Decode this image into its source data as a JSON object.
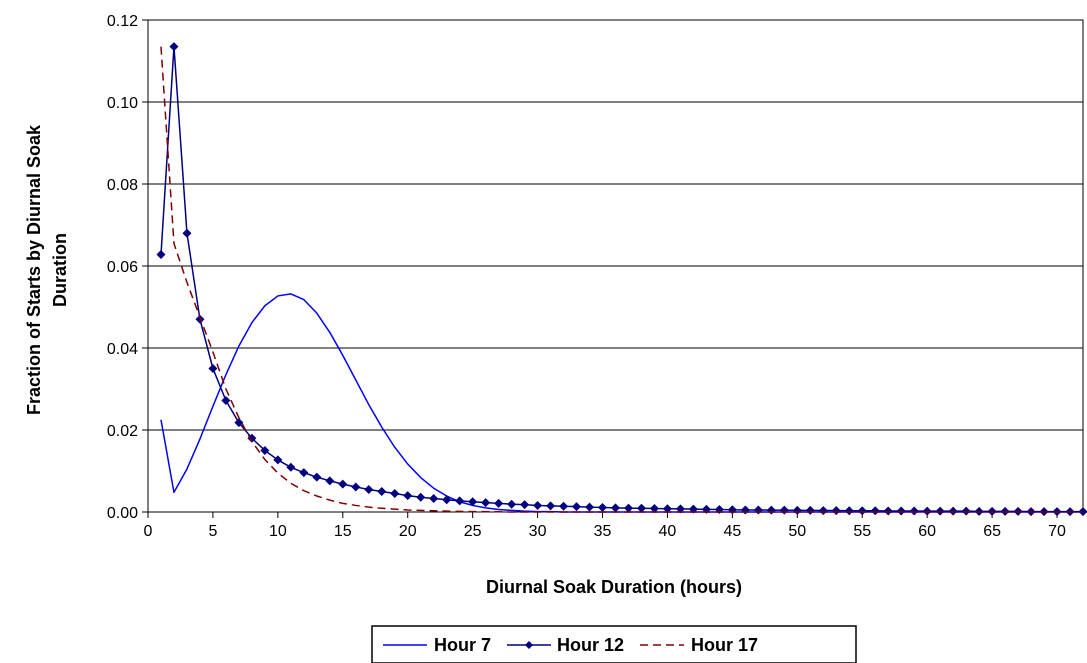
{
  "chart_data": {
    "type": "line",
    "title": "",
    "xlabel": "Diurnal Soak Duration (hours)",
    "ylabel_lines": [
      "Fraction of Starts by Diurnal Soak",
      "Duration"
    ],
    "xlim": [
      0,
      72
    ],
    "ylim": [
      0,
      0.12
    ],
    "x_ticks": [
      0,
      5,
      10,
      15,
      20,
      25,
      30,
      35,
      40,
      45,
      50,
      55,
      60,
      65,
      70
    ],
    "x_tick_labels": [
      "0",
      "5",
      "10",
      "15",
      "20",
      "25",
      "30",
      "35",
      "40",
      "45",
      "50",
      "55",
      "60",
      "65",
      "70"
    ],
    "y_ticks": [
      0,
      0.02,
      0.04,
      0.06,
      0.08,
      0.1,
      0.12
    ],
    "y_tick_labels": [
      "0.00",
      "0.02",
      "0.04",
      "0.06",
      "0.08",
      "0.10",
      "0.12"
    ],
    "grid": "horizontal",
    "legend_position": "bottom",
    "x": [
      1,
      2,
      3,
      4,
      5,
      6,
      7,
      8,
      9,
      10,
      11,
      12,
      13,
      14,
      15,
      16,
      17,
      18,
      19,
      20,
      21,
      22,
      23,
      24,
      25,
      26,
      27,
      28,
      29,
      30,
      31,
      32,
      33,
      34,
      35,
      36,
      37,
      38,
      39,
      40,
      41,
      42,
      43,
      44,
      45,
      46,
      47,
      48,
      49,
      50,
      51,
      52,
      53,
      54,
      55,
      56,
      57,
      58,
      59,
      60,
      61,
      62,
      63,
      64,
      65,
      66,
      67,
      68,
      69,
      70,
      71,
      72
    ],
    "series": [
      {
        "name": "Hour 7",
        "color": "#0000ff",
        "style": "solid",
        "marker": "none",
        "values": [
          0.0225,
          0.0048,
          0.0105,
          0.0178,
          0.0258,
          0.0335,
          0.0405,
          0.0462,
          0.0503,
          0.0527,
          0.0532,
          0.0518,
          0.0485,
          0.0438,
          0.0382,
          0.0322,
          0.0262,
          0.0207,
          0.0158,
          0.0117,
          0.0084,
          0.0058,
          0.0039,
          0.0025,
          0.0016,
          0.001,
          0.0006,
          0.0004,
          0.0002,
          0.0001,
          0.0001,
          0,
          0,
          0,
          0,
          0,
          0,
          0,
          0,
          0,
          0,
          0,
          0,
          0,
          0,
          0,
          0,
          0,
          0,
          0,
          0,
          0,
          0,
          0,
          0,
          0,
          0,
          0,
          0,
          0,
          0,
          0,
          0,
          0,
          0,
          0,
          0,
          0,
          0,
          0,
          0,
          0
        ]
      },
      {
        "name": "Hour 12",
        "color": "#000080",
        "style": "solid",
        "marker": "diamond",
        "values": [
          0.0628,
          0.1135,
          0.068,
          0.047,
          0.035,
          0.0272,
          0.0218,
          0.018,
          0.015,
          0.0127,
          0.0109,
          0.0096,
          0.0085,
          0.0076,
          0.0068,
          0.0061,
          0.0055,
          0.005,
          0.0045,
          0.004,
          0.0036,
          0.0033,
          0.003,
          0.0027,
          0.0025,
          0.0023,
          0.0021,
          0.0019,
          0.0018,
          0.0016,
          0.0015,
          0.0014,
          0.0013,
          0.0012,
          0.0011,
          0.001,
          0.00095,
          0.0009,
          0.00085,
          0.0008,
          0.00075,
          0.0007,
          0.00065,
          0.0006,
          0.00055,
          0.0005,
          0.0005,
          0.00045,
          0.00045,
          0.0004,
          0.0004,
          0.00035,
          0.00035,
          0.0003,
          0.0003,
          0.0003,
          0.00025,
          0.00025,
          0.00025,
          0.0002,
          0.0002,
          0.0002,
          0.0002,
          0.00015,
          0.00015,
          0.00015,
          0.00015,
          0.0001,
          0.0001,
          0.0001,
          0.0001,
          0.0001
        ]
      },
      {
        "name": "Hour 17",
        "color": "#800000",
        "style": "dashed",
        "marker": "none",
        "values": [
          0.1135,
          0.0655,
          0.056,
          0.0475,
          0.039,
          0.03,
          0.023,
          0.0172,
          0.0128,
          0.0095,
          0.007,
          0.0052,
          0.0039,
          0.0029,
          0.0021,
          0.0016,
          0.0012,
          0.0009,
          0.0007,
          0.0005,
          0.0004,
          0.0003,
          0.0002,
          0.00015,
          0.0001,
          0.0001,
          5e-05,
          0,
          0,
          0,
          0,
          0,
          0,
          0,
          0,
          0,
          0,
          0,
          0,
          0,
          0,
          0,
          0,
          0,
          0,
          0,
          0,
          0,
          0,
          0,
          0,
          0,
          0,
          0,
          0,
          0,
          0,
          0,
          0,
          0,
          0,
          0,
          0,
          0,
          0,
          0,
          0,
          0,
          0,
          0,
          0,
          0
        ]
      }
    ]
  }
}
